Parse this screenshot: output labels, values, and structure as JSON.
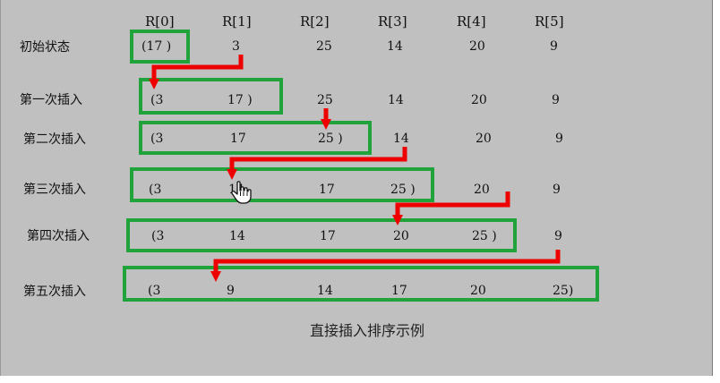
{
  "headers": [
    "R[0]",
    "R[1]",
    "R[2]",
    "R[3]",
    "R[4]",
    "R[5]"
  ],
  "rows": [
    {
      "label": "初始状态",
      "cells": [
        "(17 )",
        "3",
        "25",
        "14",
        "20",
        "9"
      ]
    },
    {
      "label": "第一次插入",
      "cells": [
        "(3",
        "17 )",
        "25",
        "14",
        "20",
        "9"
      ]
    },
    {
      "label": "第二次插入",
      "cells": [
        "(3",
        "17",
        "25 )",
        "14",
        "20",
        "9"
      ]
    },
    {
      "label": "第三次插入",
      "cells": [
        "(3",
        "14",
        "17",
        "25 )",
        "20",
        "9"
      ]
    },
    {
      "label": "第四次插入",
      "cells": [
        "(3",
        "14",
        "17",
        "20",
        "25 )",
        "9"
      ]
    },
    {
      "label": "第五次插入",
      "cells": [
        "(3",
        "9",
        "14",
        "17",
        "20",
        "25)"
      ]
    }
  ],
  "caption": "直接插入排序示例",
  "colors": {
    "box": "#1fa33a",
    "arrow": "#ee0000",
    "background": "#c0c0c0"
  },
  "icons": {
    "cursor": "hand-pointer-icon"
  }
}
